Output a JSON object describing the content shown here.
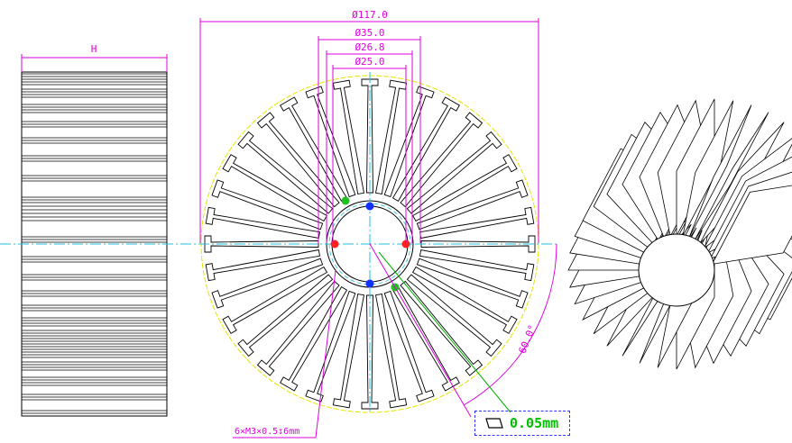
{
  "dims": {
    "width_H": "H",
    "d117": "Ø117.0",
    "d35": "Ø35.0",
    "d268": "Ø26.8",
    "d25": "Ø25.0",
    "angle": "60.0°",
    "thread": "6×M3×0.5↧6mm"
  },
  "tolerance": {
    "symbol": "flatness",
    "value": "0.05mm"
  },
  "colors": {
    "dimension": "#e000e0",
    "centerline": "#20c0e0",
    "boundary": "#e6e600",
    "outline": "#000000",
    "leader": "#00b000",
    "frame": "#3030ff",
    "red_point": "#ff2020",
    "blue_point": "#1030ff",
    "green_point": "#20c020"
  },
  "views": [
    "side-view",
    "front-view",
    "isometric-view"
  ],
  "fin_count": 36
}
